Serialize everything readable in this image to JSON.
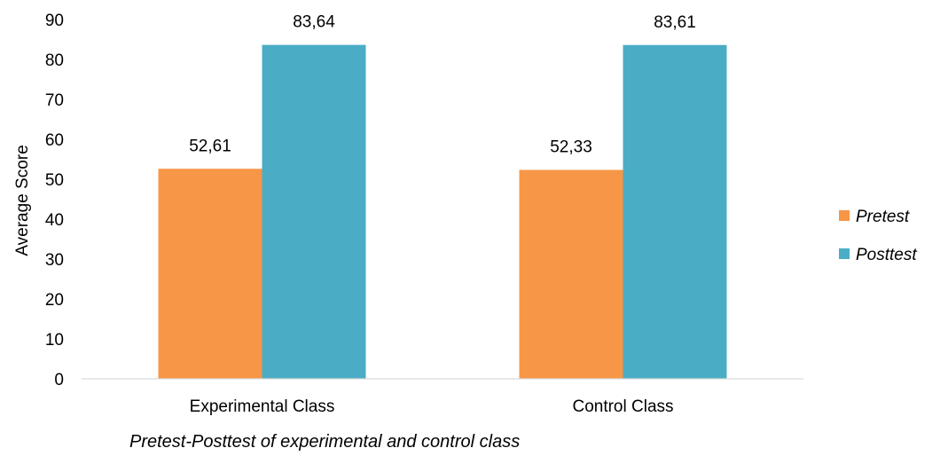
{
  "chart_data": {
    "type": "bar",
    "categories": [
      "Experimental Class",
      "Control Class"
    ],
    "series": [
      {
        "name": "Pretest",
        "values": [
          52.61,
          52.33
        ],
        "labels": [
          "52,61",
          "52,33"
        ],
        "color": "#f79646"
      },
      {
        "name": "Posttest",
        "values": [
          83.64,
          83.61
        ],
        "labels": [
          "83,64",
          "83,61"
        ],
        "color": "#4bacc6"
      }
    ],
    "ylabel": "Average Score",
    "ylim": [
      0,
      90
    ],
    "yticks": [
      0,
      10,
      20,
      30,
      40,
      50,
      60,
      70,
      80,
      90
    ],
    "grid": false,
    "legend": "right"
  },
  "caption": "Pretest-Posttest of experimental and control class"
}
